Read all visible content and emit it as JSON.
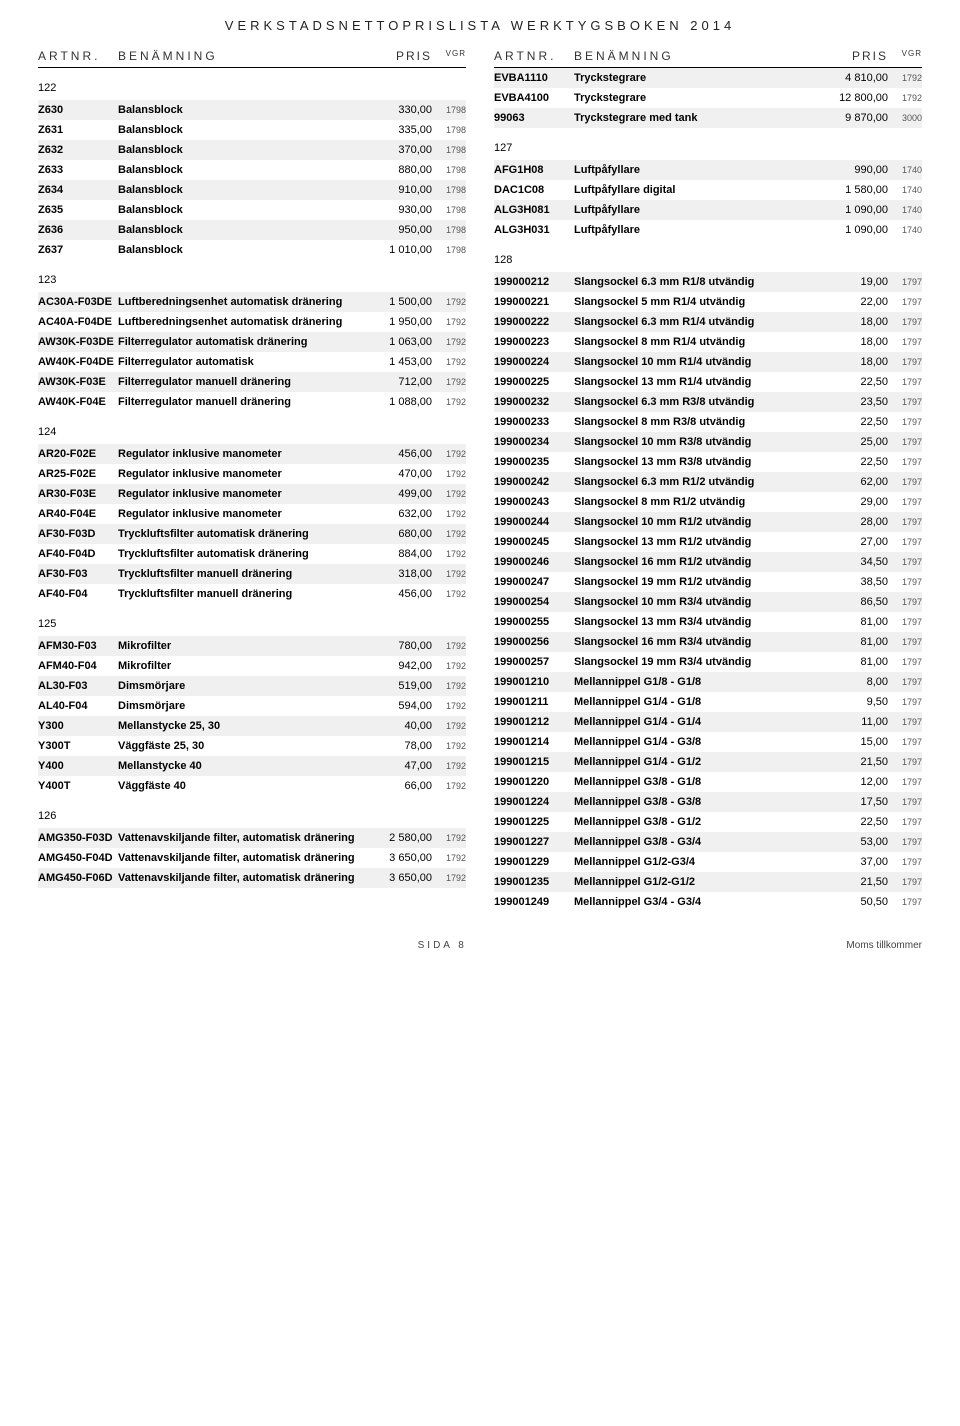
{
  "page": {
    "title": "VERKSTADSNETTOPRISLISTA WERKTYGSBOKEN 2014",
    "footer_left": "",
    "footer_center": "SIDA 8",
    "footer_right": "Moms tillkommer"
  },
  "headers": {
    "art": "ARTNR.",
    "name": "BENÄMNING",
    "pris": "PRIS",
    "vgr": "VGR"
  },
  "left": [
    {
      "type": "section",
      "label": "122"
    },
    {
      "type": "row",
      "art": "Z630",
      "name": "Balansblock",
      "pris": "330,00",
      "vgr": "1798",
      "shade": true
    },
    {
      "type": "row",
      "art": "Z631",
      "name": "Balansblock",
      "pris": "335,00",
      "vgr": "1798"
    },
    {
      "type": "row",
      "art": "Z632",
      "name": "Balansblock",
      "pris": "370,00",
      "vgr": "1798",
      "shade": true
    },
    {
      "type": "row",
      "art": "Z633",
      "name": "Balansblock",
      "pris": "880,00",
      "vgr": "1798"
    },
    {
      "type": "row",
      "art": "Z634",
      "name": "Balansblock",
      "pris": "910,00",
      "vgr": "1798",
      "shade": true
    },
    {
      "type": "row",
      "art": "Z635",
      "name": "Balansblock",
      "pris": "930,00",
      "vgr": "1798"
    },
    {
      "type": "row",
      "art": "Z636",
      "name": "Balansblock",
      "pris": "950,00",
      "vgr": "1798",
      "shade": true
    },
    {
      "type": "row",
      "art": "Z637",
      "name": "Balansblock",
      "pris": "1 010,00",
      "vgr": "1798"
    },
    {
      "type": "section",
      "label": "123"
    },
    {
      "type": "row",
      "art": "AC30A-F03DE",
      "name": "Luftberedningsenhet automatisk dränering",
      "pris": "1 500,00",
      "vgr": "1792",
      "shade": true
    },
    {
      "type": "row",
      "art": "AC40A-F04DE",
      "name": "Luftberedningsenhet automatisk dränering",
      "pris": "1 950,00",
      "vgr": "1792"
    },
    {
      "type": "row",
      "art": "AW30K-F03DE",
      "name": "Filterregulator automatisk dränering",
      "pris": "1 063,00",
      "vgr": "1792",
      "shade": true
    },
    {
      "type": "row",
      "art": "AW40K-F04DE",
      "name": "Filterregulator automatisk",
      "pris": "1 453,00",
      "vgr": "1792"
    },
    {
      "type": "row",
      "art": "AW30K-F03E",
      "name": "Filterregulator manuell dränering",
      "pris": "712,00",
      "vgr": "1792",
      "shade": true
    },
    {
      "type": "row",
      "art": "AW40K-F04E",
      "name": "Filterregulator manuell dränering",
      "pris": "1 088,00",
      "vgr": "1792"
    },
    {
      "type": "section",
      "label": "124"
    },
    {
      "type": "row",
      "art": "AR20-F02E",
      "name": "Regulator inklusive manometer",
      "pris": "456,00",
      "vgr": "1792",
      "shade": true
    },
    {
      "type": "row",
      "art": "AR25-F02E",
      "name": "Regulator inklusive manometer",
      "pris": "470,00",
      "vgr": "1792"
    },
    {
      "type": "row",
      "art": "AR30-F03E",
      "name": "Regulator inklusive manometer",
      "pris": "499,00",
      "vgr": "1792",
      "shade": true
    },
    {
      "type": "row",
      "art": "AR40-F04E",
      "name": "Regulator inklusive manometer",
      "pris": "632,00",
      "vgr": "1792"
    },
    {
      "type": "row",
      "art": "AF30-F03D",
      "name": "Tryckluftsfilter automatisk dränering",
      "pris": "680,00",
      "vgr": "1792",
      "shade": true
    },
    {
      "type": "row",
      "art": "AF40-F04D",
      "name": "Tryckluftsfilter automatisk dränering",
      "pris": "884,00",
      "vgr": "1792"
    },
    {
      "type": "row",
      "art": "AF30-F03",
      "name": "Tryckluftsfilter manuell dränering",
      "pris": "318,00",
      "vgr": "1792",
      "shade": true
    },
    {
      "type": "row",
      "art": "AF40-F04",
      "name": "Tryckluftsfilter manuell dränering",
      "pris": "456,00",
      "vgr": "1792"
    },
    {
      "type": "section",
      "label": "125"
    },
    {
      "type": "row",
      "art": "AFM30-F03",
      "name": "Mikrofilter",
      "pris": "780,00",
      "vgr": "1792",
      "shade": true
    },
    {
      "type": "row",
      "art": "AFM40-F04",
      "name": "Mikrofilter",
      "pris": "942,00",
      "vgr": "1792"
    },
    {
      "type": "row",
      "art": "AL30-F03",
      "name": "Dimsmörjare",
      "pris": "519,00",
      "vgr": "1792",
      "shade": true
    },
    {
      "type": "row",
      "art": "AL40-F04",
      "name": "Dimsmörjare",
      "pris": "594,00",
      "vgr": "1792"
    },
    {
      "type": "row",
      "art": "Y300",
      "name": "Mellanstycke 25, 30",
      "pris": "40,00",
      "vgr": "1792",
      "shade": true
    },
    {
      "type": "row",
      "art": "Y300T",
      "name": "Väggfäste 25, 30",
      "pris": "78,00",
      "vgr": "1792"
    },
    {
      "type": "row",
      "art": "Y400",
      "name": "Mellanstycke 40",
      "pris": "47,00",
      "vgr": "1792",
      "shade": true
    },
    {
      "type": "row",
      "art": "Y400T",
      "name": "Väggfäste 40",
      "pris": "66,00",
      "vgr": "1792"
    },
    {
      "type": "section",
      "label": "126"
    },
    {
      "type": "row",
      "art": "AMG350-F03D",
      "name": "Vattenavskiljande filter, automatisk dränering",
      "pris": "2 580,00",
      "vgr": "1792",
      "shade": true
    },
    {
      "type": "row",
      "art": "AMG450-F04D",
      "name": "Vattenavskiljande filter, automatisk dränering",
      "pris": "3 650,00",
      "vgr": "1792"
    },
    {
      "type": "row",
      "art": "AMG450-F06D",
      "name": "Vattenavskiljande filter, automatisk dränering",
      "pris": "3 650,00",
      "vgr": "1792",
      "shade": true
    }
  ],
  "right": [
    {
      "type": "row",
      "art": "EVBA1110",
      "name": "Tryckstegrare",
      "pris": "4 810,00",
      "vgr": "1792",
      "shade": true
    },
    {
      "type": "row",
      "art": "EVBA4100",
      "name": "Tryckstegrare",
      "pris": "12 800,00",
      "vgr": "1792"
    },
    {
      "type": "row",
      "art": "99063",
      "name": "Tryckstegrare med tank",
      "pris": "9 870,00",
      "vgr": "3000",
      "shade": true
    },
    {
      "type": "section",
      "label": "127"
    },
    {
      "type": "row",
      "art": "AFG1H08",
      "name": "Luftpåfyllare",
      "pris": "990,00",
      "vgr": "1740",
      "shade": true
    },
    {
      "type": "row",
      "art": "DAC1C08",
      "name": "Luftpåfyllare digital",
      "pris": "1 580,00",
      "vgr": "1740"
    },
    {
      "type": "row",
      "art": "ALG3H081",
      "name": "Luftpåfyllare",
      "pris": "1 090,00",
      "vgr": "1740",
      "shade": true
    },
    {
      "type": "row",
      "art": "ALG3H031",
      "name": "Luftpåfyllare",
      "pris": "1 090,00",
      "vgr": "1740"
    },
    {
      "type": "section",
      "label": "128"
    },
    {
      "type": "row",
      "art": "199000212",
      "name": "Slangsockel 6.3 mm R1/8 utvändig",
      "pris": "19,00",
      "vgr": "1797",
      "shade": true
    },
    {
      "type": "row",
      "art": "199000221",
      "name": "Slangsockel 5 mm R1/4 utvändig",
      "pris": "22,00",
      "vgr": "1797"
    },
    {
      "type": "row",
      "art": "199000222",
      "name": "Slangsockel 6.3 mm R1/4 utvändig",
      "pris": "18,00",
      "vgr": "1797",
      "shade": true
    },
    {
      "type": "row",
      "art": "199000223",
      "name": "Slangsockel 8 mm R1/4 utvändig",
      "pris": "18,00",
      "vgr": "1797"
    },
    {
      "type": "row",
      "art": "199000224",
      "name": "Slangsockel 10 mm R1/4 utvändig",
      "pris": "18,00",
      "vgr": "1797",
      "shade": true
    },
    {
      "type": "row",
      "art": "199000225",
      "name": "Slangsockel 13 mm R1/4 utvändig",
      "pris": "22,50",
      "vgr": "1797"
    },
    {
      "type": "row",
      "art": "199000232",
      "name": "Slangsockel 6.3 mm R3/8 utvändig",
      "pris": "23,50",
      "vgr": "1797",
      "shade": true
    },
    {
      "type": "row",
      "art": "199000233",
      "name": "Slangsockel 8 mm R3/8 utvändig",
      "pris": "22,50",
      "vgr": "1797"
    },
    {
      "type": "row",
      "art": "199000234",
      "name": "Slangsockel 10 mm R3/8 utvändig",
      "pris": "25,00",
      "vgr": "1797",
      "shade": true
    },
    {
      "type": "row",
      "art": "199000235",
      "name": "Slangsockel 13 mm R3/8 utvändig",
      "pris": "22,50",
      "vgr": "1797"
    },
    {
      "type": "row",
      "art": "199000242",
      "name": "Slangsockel 6.3 mm R1/2 utvändig",
      "pris": "62,00",
      "vgr": "1797",
      "shade": true
    },
    {
      "type": "row",
      "art": "199000243",
      "name": "Slangsockel 8 mm R1/2 utvändig",
      "pris": "29,00",
      "vgr": "1797"
    },
    {
      "type": "row",
      "art": "199000244",
      "name": "Slangsockel 10 mm R1/2 utvändig",
      "pris": "28,00",
      "vgr": "1797",
      "shade": true
    },
    {
      "type": "row",
      "art": "199000245",
      "name": "Slangsockel 13 mm R1/2 utvändig",
      "pris": "27,00",
      "vgr": "1797"
    },
    {
      "type": "row",
      "art": "199000246",
      "name": "Slangsockel 16 mm R1/2 utvändig",
      "pris": "34,50",
      "vgr": "1797",
      "shade": true
    },
    {
      "type": "row",
      "art": "199000247",
      "name": "Slangsockel 19 mm R1/2 utvändig",
      "pris": "38,50",
      "vgr": "1797"
    },
    {
      "type": "row",
      "art": "199000254",
      "name": "Slangsockel 10 mm R3/4 utvändig",
      "pris": "86,50",
      "vgr": "1797",
      "shade": true
    },
    {
      "type": "row",
      "art": "199000255",
      "name": "Slangsockel 13 mm R3/4 utvändig",
      "pris": "81,00",
      "vgr": "1797"
    },
    {
      "type": "row",
      "art": "199000256",
      "name": "Slangsockel 16 mm R3/4 utvändig",
      "pris": "81,00",
      "vgr": "1797",
      "shade": true
    },
    {
      "type": "row",
      "art": "199000257",
      "name": "Slangsockel 19 mm R3/4 utvändig",
      "pris": "81,00",
      "vgr": "1797"
    },
    {
      "type": "row",
      "art": "199001210",
      "name": "Mellannippel G1/8 - G1/8",
      "pris": "8,00",
      "vgr": "1797",
      "shade": true
    },
    {
      "type": "row",
      "art": "199001211",
      "name": "Mellannippel G1/4 - G1/8",
      "pris": "9,50",
      "vgr": "1797"
    },
    {
      "type": "row",
      "art": "199001212",
      "name": "Mellannippel G1/4 - G1/4",
      "pris": "11,00",
      "vgr": "1797",
      "shade": true
    },
    {
      "type": "row",
      "art": "199001214",
      "name": "Mellannippel G1/4 - G3/8",
      "pris": "15,00",
      "vgr": "1797"
    },
    {
      "type": "row",
      "art": "199001215",
      "name": "Mellannippel G1/4 - G1/2",
      "pris": "21,50",
      "vgr": "1797",
      "shade": true
    },
    {
      "type": "row",
      "art": "199001220",
      "name": "Mellannippel G3/8 - G1/8",
      "pris": "12,00",
      "vgr": "1797"
    },
    {
      "type": "row",
      "art": "199001224",
      "name": "Mellannippel G3/8 - G3/8",
      "pris": "17,50",
      "vgr": "1797",
      "shade": true
    },
    {
      "type": "row",
      "art": "199001225",
      "name": "Mellannippel G3/8 - G1/2",
      "pris": "22,50",
      "vgr": "1797"
    },
    {
      "type": "row",
      "art": "199001227",
      "name": "Mellannippel G3/8 - G3/4",
      "pris": "53,00",
      "vgr": "1797",
      "shade": true
    },
    {
      "type": "row",
      "art": "199001229",
      "name": "Mellannippel G1/2-G3/4",
      "pris": "37,00",
      "vgr": "1797"
    },
    {
      "type": "row",
      "art": "199001235",
      "name": "Mellannippel G1/2-G1/2",
      "pris": "21,50",
      "vgr": "1797",
      "shade": true
    },
    {
      "type": "row",
      "art": "199001249",
      "name": "Mellannippel G3/4 - G3/4",
      "pris": "50,50",
      "vgr": "1797"
    }
  ]
}
